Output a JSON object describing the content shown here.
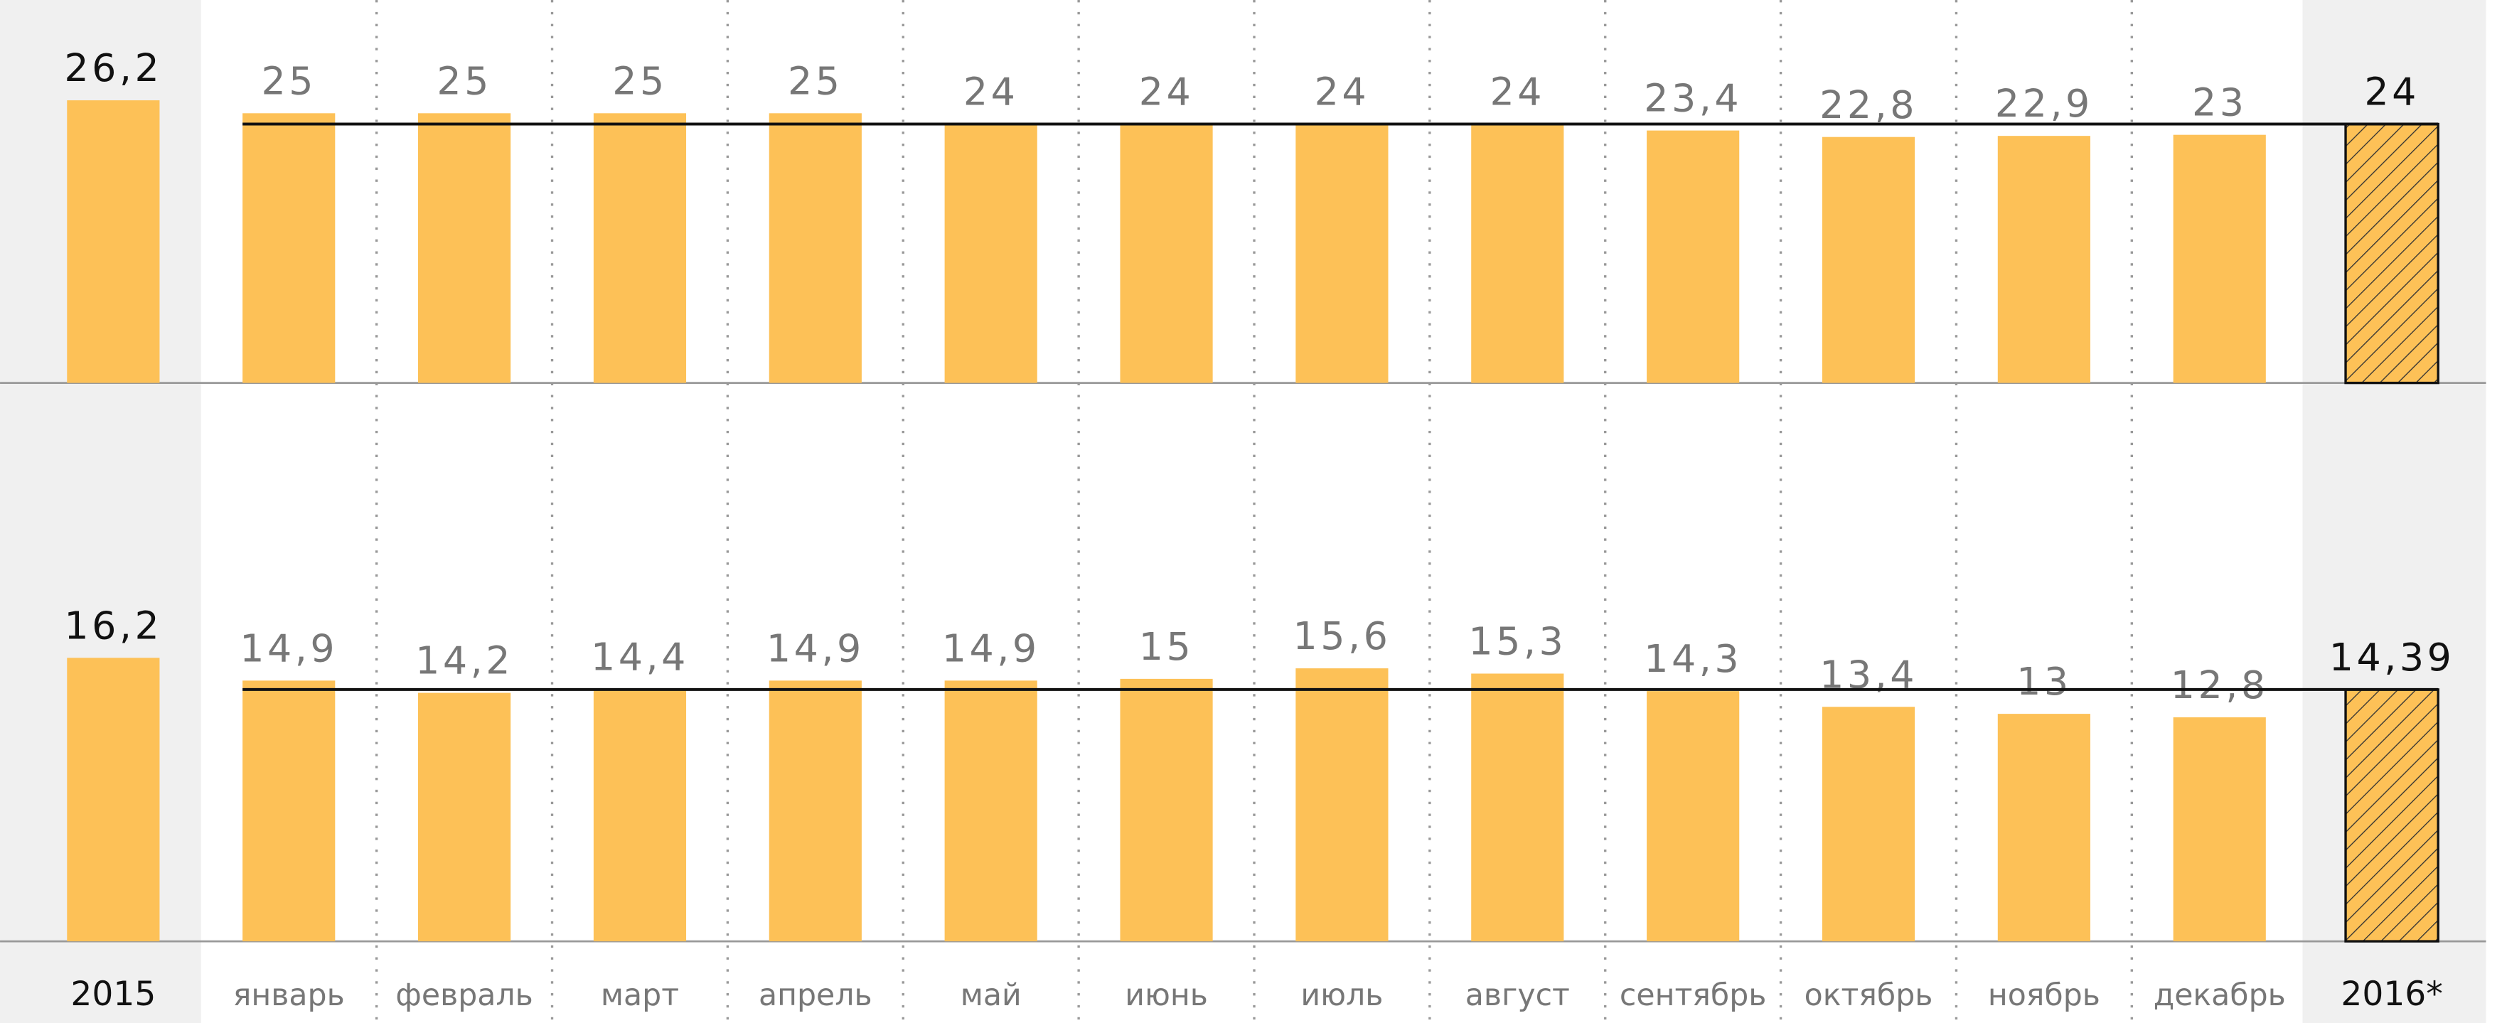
{
  "chart_data": [
    {
      "type": "bar",
      "color": "#fdc157",
      "ylim": [
        0,
        35.5
      ],
      "values": [
        26.2,
        25,
        25,
        25,
        25,
        24,
        24,
        24,
        24,
        23.4,
        22.8,
        22.9,
        23,
        24
      ],
      "value_labels": [
        "26,2",
        "25",
        "25",
        "25",
        "25",
        "24",
        "24",
        "24",
        "24",
        "23,4",
        "22,8",
        "22,9",
        "23",
        "24"
      ]
    },
    {
      "type": "bar",
      "color": "#fdc157",
      "ylim": [
        0,
        31
      ],
      "categories": [
        "2015",
        "январь",
        "февраль",
        "март",
        "апрель",
        "май",
        "июнь",
        "июль",
        "август",
        "сентябрь",
        "октябрь",
        "ноябрь",
        "декабрь",
        "2016*"
      ],
      "values": [
        16.2,
        14.9,
        14.2,
        14.4,
        14.9,
        14.9,
        15,
        15.6,
        15.3,
        14.3,
        13.4,
        13,
        12.8,
        14.39
      ],
      "value_labels": [
        "16,2",
        "14,9",
        "14,2",
        "14,4",
        "14,9",
        "14,9",
        "15",
        "15,6",
        "15,3",
        "14,3",
        "13,4",
        "13",
        "12,8",
        "14,39"
      ]
    }
  ]
}
